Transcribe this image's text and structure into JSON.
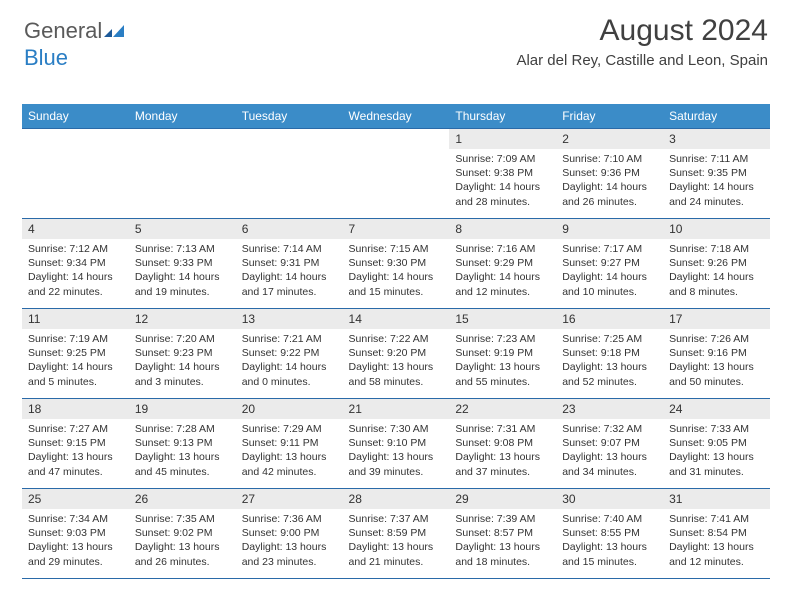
{
  "logo": {
    "part1": "General",
    "part2": "Blue"
  },
  "title": "August 2024",
  "location": "Alar del Rey, Castille and Leon, Spain",
  "colors": {
    "header_bg": "#3b8cc8",
    "header_fg": "#ffffff",
    "cell_border": "#2a6aa8",
    "daynum_bg": "#ebebeb",
    "logo_gray": "#5a5a5a",
    "logo_blue": "#2a7ec4",
    "text": "#333333"
  },
  "typography": {
    "title_fontsize": 30,
    "location_fontsize": 15,
    "header_fontsize": 12,
    "daynum_fontsize": 12,
    "details_fontsize": 10.5
  },
  "weekdays": [
    "Sunday",
    "Monday",
    "Tuesday",
    "Wednesday",
    "Thursday",
    "Friday",
    "Saturday"
  ],
  "weeks": [
    [
      {
        "empty": true
      },
      {
        "empty": true
      },
      {
        "empty": true
      },
      {
        "empty": true
      },
      {
        "day": "1",
        "sunrise": "Sunrise: 7:09 AM",
        "sunset": "Sunset: 9:38 PM",
        "daylight1": "Daylight: 14 hours",
        "daylight2": "and 28 minutes."
      },
      {
        "day": "2",
        "sunrise": "Sunrise: 7:10 AM",
        "sunset": "Sunset: 9:36 PM",
        "daylight1": "Daylight: 14 hours",
        "daylight2": "and 26 minutes."
      },
      {
        "day": "3",
        "sunrise": "Sunrise: 7:11 AM",
        "sunset": "Sunset: 9:35 PM",
        "daylight1": "Daylight: 14 hours",
        "daylight2": "and 24 minutes."
      }
    ],
    [
      {
        "day": "4",
        "sunrise": "Sunrise: 7:12 AM",
        "sunset": "Sunset: 9:34 PM",
        "daylight1": "Daylight: 14 hours",
        "daylight2": "and 22 minutes."
      },
      {
        "day": "5",
        "sunrise": "Sunrise: 7:13 AM",
        "sunset": "Sunset: 9:33 PM",
        "daylight1": "Daylight: 14 hours",
        "daylight2": "and 19 minutes."
      },
      {
        "day": "6",
        "sunrise": "Sunrise: 7:14 AM",
        "sunset": "Sunset: 9:31 PM",
        "daylight1": "Daylight: 14 hours",
        "daylight2": "and 17 minutes."
      },
      {
        "day": "7",
        "sunrise": "Sunrise: 7:15 AM",
        "sunset": "Sunset: 9:30 PM",
        "daylight1": "Daylight: 14 hours",
        "daylight2": "and 15 minutes."
      },
      {
        "day": "8",
        "sunrise": "Sunrise: 7:16 AM",
        "sunset": "Sunset: 9:29 PM",
        "daylight1": "Daylight: 14 hours",
        "daylight2": "and 12 minutes."
      },
      {
        "day": "9",
        "sunrise": "Sunrise: 7:17 AM",
        "sunset": "Sunset: 9:27 PM",
        "daylight1": "Daylight: 14 hours",
        "daylight2": "and 10 minutes."
      },
      {
        "day": "10",
        "sunrise": "Sunrise: 7:18 AM",
        "sunset": "Sunset: 9:26 PM",
        "daylight1": "Daylight: 14 hours",
        "daylight2": "and 8 minutes."
      }
    ],
    [
      {
        "day": "11",
        "sunrise": "Sunrise: 7:19 AM",
        "sunset": "Sunset: 9:25 PM",
        "daylight1": "Daylight: 14 hours",
        "daylight2": "and 5 minutes."
      },
      {
        "day": "12",
        "sunrise": "Sunrise: 7:20 AM",
        "sunset": "Sunset: 9:23 PM",
        "daylight1": "Daylight: 14 hours",
        "daylight2": "and 3 minutes."
      },
      {
        "day": "13",
        "sunrise": "Sunrise: 7:21 AM",
        "sunset": "Sunset: 9:22 PM",
        "daylight1": "Daylight: 14 hours",
        "daylight2": "and 0 minutes."
      },
      {
        "day": "14",
        "sunrise": "Sunrise: 7:22 AM",
        "sunset": "Sunset: 9:20 PM",
        "daylight1": "Daylight: 13 hours",
        "daylight2": "and 58 minutes."
      },
      {
        "day": "15",
        "sunrise": "Sunrise: 7:23 AM",
        "sunset": "Sunset: 9:19 PM",
        "daylight1": "Daylight: 13 hours",
        "daylight2": "and 55 minutes."
      },
      {
        "day": "16",
        "sunrise": "Sunrise: 7:25 AM",
        "sunset": "Sunset: 9:18 PM",
        "daylight1": "Daylight: 13 hours",
        "daylight2": "and 52 minutes."
      },
      {
        "day": "17",
        "sunrise": "Sunrise: 7:26 AM",
        "sunset": "Sunset: 9:16 PM",
        "daylight1": "Daylight: 13 hours",
        "daylight2": "and 50 minutes."
      }
    ],
    [
      {
        "day": "18",
        "sunrise": "Sunrise: 7:27 AM",
        "sunset": "Sunset: 9:15 PM",
        "daylight1": "Daylight: 13 hours",
        "daylight2": "and 47 minutes."
      },
      {
        "day": "19",
        "sunrise": "Sunrise: 7:28 AM",
        "sunset": "Sunset: 9:13 PM",
        "daylight1": "Daylight: 13 hours",
        "daylight2": "and 45 minutes."
      },
      {
        "day": "20",
        "sunrise": "Sunrise: 7:29 AM",
        "sunset": "Sunset: 9:11 PM",
        "daylight1": "Daylight: 13 hours",
        "daylight2": "and 42 minutes."
      },
      {
        "day": "21",
        "sunrise": "Sunrise: 7:30 AM",
        "sunset": "Sunset: 9:10 PM",
        "daylight1": "Daylight: 13 hours",
        "daylight2": "and 39 minutes."
      },
      {
        "day": "22",
        "sunrise": "Sunrise: 7:31 AM",
        "sunset": "Sunset: 9:08 PM",
        "daylight1": "Daylight: 13 hours",
        "daylight2": "and 37 minutes."
      },
      {
        "day": "23",
        "sunrise": "Sunrise: 7:32 AM",
        "sunset": "Sunset: 9:07 PM",
        "daylight1": "Daylight: 13 hours",
        "daylight2": "and 34 minutes."
      },
      {
        "day": "24",
        "sunrise": "Sunrise: 7:33 AM",
        "sunset": "Sunset: 9:05 PM",
        "daylight1": "Daylight: 13 hours",
        "daylight2": "and 31 minutes."
      }
    ],
    [
      {
        "day": "25",
        "sunrise": "Sunrise: 7:34 AM",
        "sunset": "Sunset: 9:03 PM",
        "daylight1": "Daylight: 13 hours",
        "daylight2": "and 29 minutes."
      },
      {
        "day": "26",
        "sunrise": "Sunrise: 7:35 AM",
        "sunset": "Sunset: 9:02 PM",
        "daylight1": "Daylight: 13 hours",
        "daylight2": "and 26 minutes."
      },
      {
        "day": "27",
        "sunrise": "Sunrise: 7:36 AM",
        "sunset": "Sunset: 9:00 PM",
        "daylight1": "Daylight: 13 hours",
        "daylight2": "and 23 minutes."
      },
      {
        "day": "28",
        "sunrise": "Sunrise: 7:37 AM",
        "sunset": "Sunset: 8:59 PM",
        "daylight1": "Daylight: 13 hours",
        "daylight2": "and 21 minutes."
      },
      {
        "day": "29",
        "sunrise": "Sunrise: 7:39 AM",
        "sunset": "Sunset: 8:57 PM",
        "daylight1": "Daylight: 13 hours",
        "daylight2": "and 18 minutes."
      },
      {
        "day": "30",
        "sunrise": "Sunrise: 7:40 AM",
        "sunset": "Sunset: 8:55 PM",
        "daylight1": "Daylight: 13 hours",
        "daylight2": "and 15 minutes."
      },
      {
        "day": "31",
        "sunrise": "Sunrise: 7:41 AM",
        "sunset": "Sunset: 8:54 PM",
        "daylight1": "Daylight: 13 hours",
        "daylight2": "and 12 minutes."
      }
    ]
  ]
}
